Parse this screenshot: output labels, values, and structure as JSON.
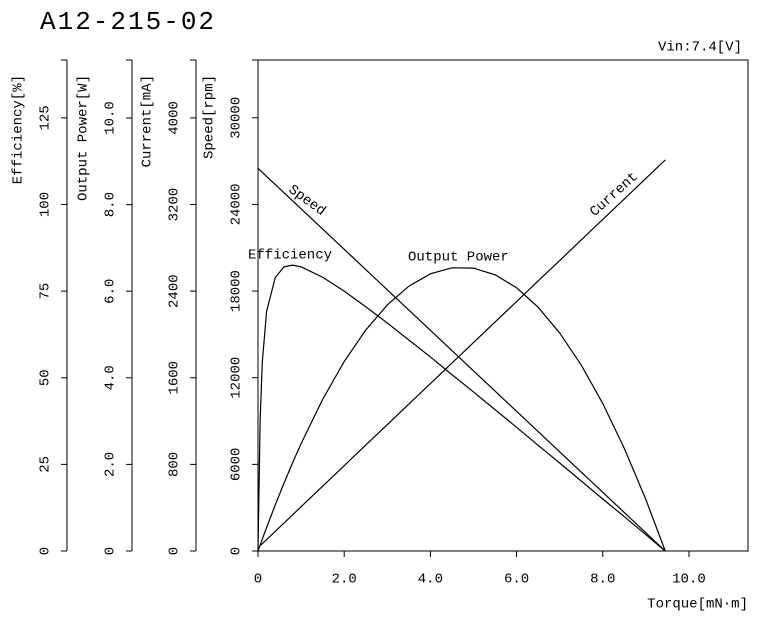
{
  "chart_data": {
    "type": "line",
    "title": "A12-215-02",
    "annotation": "Vin:7.4[V]",
    "x_label": "Torque[mN·m]",
    "xlim": [
      0,
      11.37
    ],
    "xticks": [
      0,
      {
        "value": 2,
        "label": "2.0"
      },
      {
        "value": 4,
        "label": "4.0"
      },
      {
        "value": 6,
        "label": "6.0"
      },
      {
        "value": 8,
        "label": "8.0"
      },
      {
        "value": 10,
        "label": "10.0"
      }
    ],
    "axes": [
      {
        "label": "Efficiency[%]",
        "lim": [
          0,
          141.7
        ],
        "ticks": [
          0,
          25,
          50,
          75,
          100,
          125
        ]
      },
      {
        "label": "Output Power[W]",
        "lim": [
          0,
          11.34
        ],
        "ticks": [
          0,
          {
            "value": 2,
            "label": "2.0"
          },
          {
            "value": 4,
            "label": "4.0"
          },
          {
            "value": 6,
            "label": "6.0"
          },
          {
            "value": 8,
            "label": "8.0"
          },
          {
            "value": 10,
            "label": "10.0"
          }
        ]
      },
      {
        "label": "Current[mA]",
        "lim": [
          0,
          4535
        ],
        "ticks": [
          0,
          800,
          1600,
          2400,
          3200,
          4000
        ]
      },
      {
        "label": "Speed[rpm]",
        "lim": [
          0,
          34000
        ],
        "ticks": [
          0,
          6000,
          12000,
          18000,
          24000,
          30000
        ]
      }
    ],
    "x": [
      0,
      0.05,
      0.1,
      0.2,
      0.4,
      0.6,
      0.8,
      1,
      1.5,
      2,
      2.5,
      3,
      3.5,
      4,
      4.5,
      5,
      5.5,
      6,
      6.5,
      7,
      7.5,
      8,
      8.5,
      9,
      9.45
    ],
    "series": [
      {
        "name": "Speed",
        "axis": 3,
        "color": "#000000",
        "values": [
          26500,
          26360,
          26220,
          25939,
          25378,
          24817,
          24257,
          23696,
          22294,
          20892,
          19490,
          18087,
          16685,
          15283,
          13881,
          12479,
          11077,
          9675,
          8272,
          6870,
          5468,
          4066,
          2664,
          1262,
          0
        ]
      },
      {
        "name": "Current",
        "axis": 2,
        "color": "#000000",
        "values": [
          30,
          49,
          68,
          106,
          182,
          257,
          333,
          409,
          599,
          788,
          978,
          1167,
          1357,
          1546,
          1736,
          1925,
          2115,
          2304,
          2494,
          2683,
          2873,
          3062,
          3252,
          3441,
          3612
        ]
      },
      {
        "name": "Efficiency",
        "axis": 0,
        "color": "#000000",
        "values": [
          0,
          38.1,
          54.6,
          69.2,
          78.9,
          82.0,
          82.5,
          82.0,
          79.0,
          75.0,
          70.5,
          65.8,
          60.9,
          56.0,
          50.9,
          45.9,
          40.8,
          35.7,
          30.5,
          25.4,
          20.2,
          15.0,
          9.9,
          4.7,
          0
        ]
      },
      {
        "name": "Output Power",
        "axis": 1,
        "color": "#000000",
        "values": [
          0,
          0.138,
          0.275,
          0.543,
          1.063,
          1.559,
          2.032,
          2.481,
          3.502,
          4.376,
          5.103,
          5.682,
          6.115,
          6.402,
          6.541,
          6.534,
          6.38,
          6.079,
          5.631,
          5.036,
          4.295,
          3.406,
          2.371,
          1.189,
          0
        ]
      }
    ]
  }
}
